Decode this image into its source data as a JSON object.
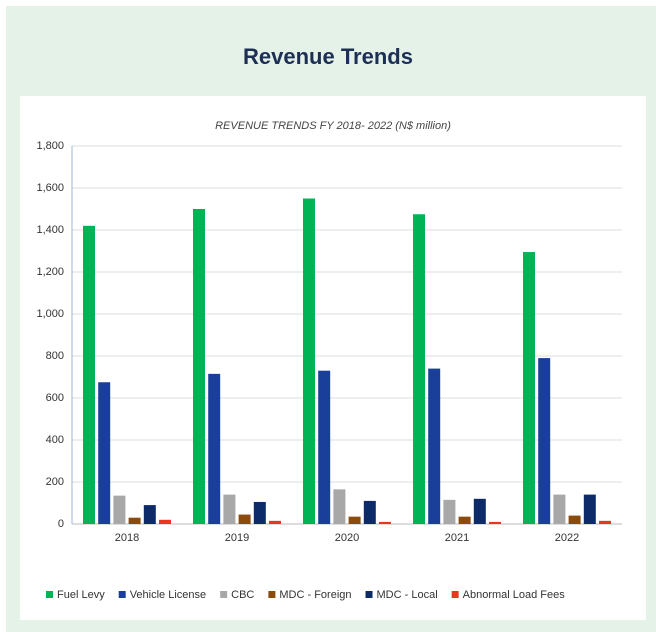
{
  "header": {
    "title": "Revenue Trends"
  },
  "chart_data": {
    "type": "bar",
    "title": "REVENUE TRENDS FY 2018- 2022 (N$ million)",
    "categories": [
      "2018",
      "2019",
      "2020",
      "2021",
      "2022"
    ],
    "series": [
      {
        "name": "Fuel Levy",
        "color": "#00b455",
        "values": [
          1420,
          1500,
          1550,
          1475,
          1295
        ]
      },
      {
        "name": "Vehicle License",
        "color": "#1a3f9a",
        "values": [
          675,
          715,
          730,
          740,
          790
        ]
      },
      {
        "name": "CBC",
        "color": "#a8a8a8",
        "values": [
          135,
          140,
          165,
          115,
          140
        ]
      },
      {
        "name": "MDC - Foreign",
        "color": "#8a4b0c",
        "values": [
          30,
          45,
          35,
          35,
          40
        ]
      },
      {
        "name": "MDC - Local",
        "color": "#0c2b68",
        "values": [
          90,
          105,
          110,
          120,
          140
        ]
      },
      {
        "name": "Abnormal Load Fees",
        "color": "#e5381e",
        "values": [
          20,
          15,
          10,
          10,
          15
        ]
      }
    ],
    "ylim": [
      0,
      1800
    ],
    "yticks": [
      0,
      200,
      400,
      600,
      800,
      {
        "value": 1000,
        "label": "1,000"
      },
      {
        "value": 1200,
        "label": "1,200"
      },
      {
        "value": 1400,
        "label": "1,400"
      },
      {
        "value": 1600,
        "label": "1,600"
      },
      {
        "value": 1800,
        "label": "1,800"
      }
    ],
    "grid": true
  }
}
